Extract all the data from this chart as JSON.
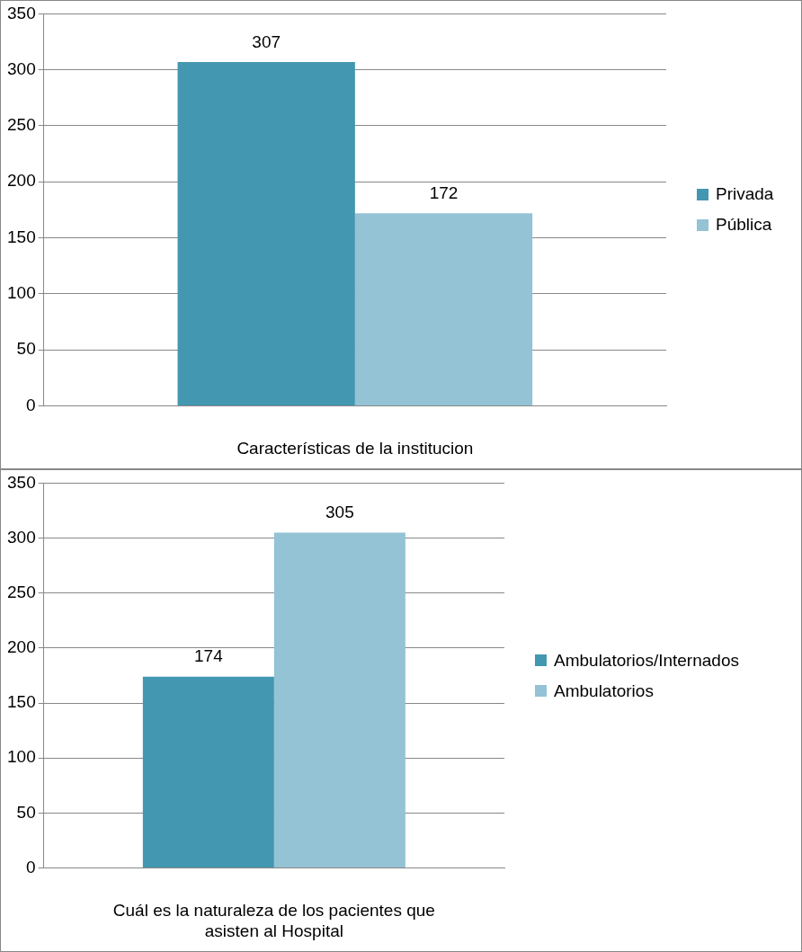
{
  "chart_data": [
    {
      "type": "bar",
      "xlabel": "Características de la institucion",
      "categories": [
        null
      ],
      "series": [
        {
          "name": "Privada",
          "color": "#4397b0",
          "values": [
            307
          ]
        },
        {
          "name": "Pública",
          "color": "#93c3d5",
          "values": [
            172
          ]
        }
      ],
      "ylim": [
        0,
        350
      ],
      "yticks": [
        0,
        50,
        100,
        150,
        200,
        250,
        300,
        350
      ],
      "grid": "y",
      "legend": "right",
      "data_labels": true
    },
    {
      "type": "bar",
      "xlabel": "Cuál es la naturaleza de los pacientes que asisten al Hospital",
      "categories": [
        null
      ],
      "series": [
        {
          "name": "Ambulatorios/Internados",
          "color": "#4397b0",
          "values": [
            174
          ]
        },
        {
          "name": "Ambulatorios",
          "color": "#93c3d5",
          "values": [
            305
          ]
        }
      ],
      "ylim": [
        0,
        350
      ],
      "yticks": [
        0,
        50,
        100,
        150,
        200,
        250,
        300,
        350
      ],
      "grid": "y",
      "legend": "right",
      "data_labels": true
    }
  ]
}
